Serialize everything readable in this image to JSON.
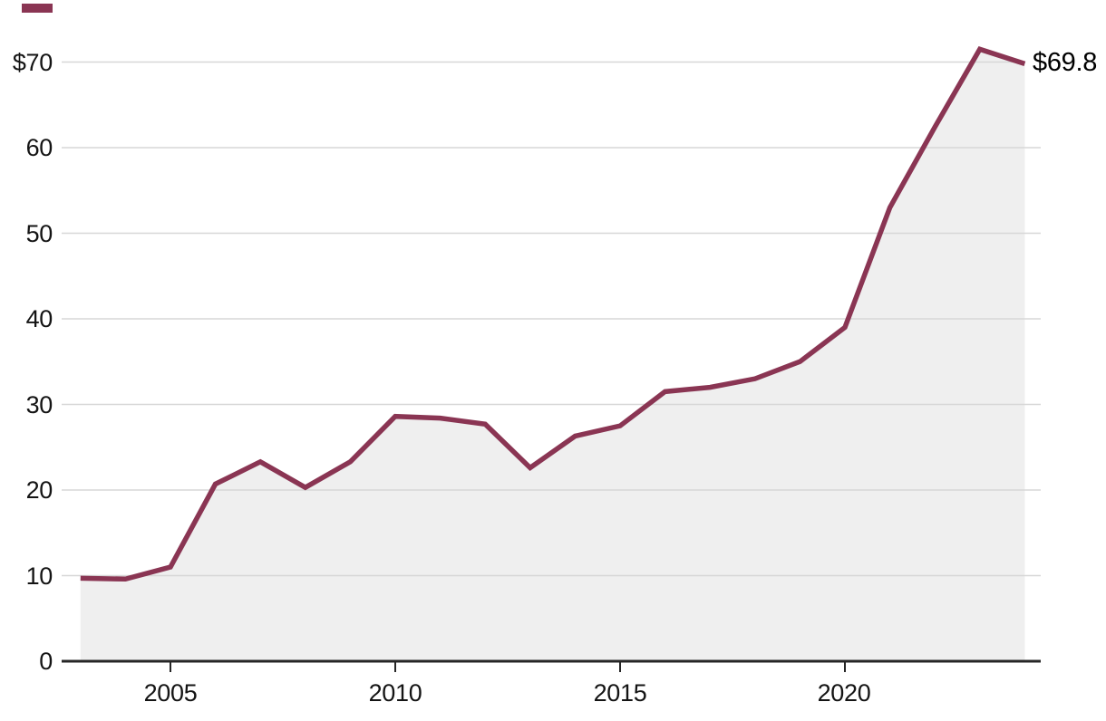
{
  "chart_data": {
    "type": "area",
    "title": "",
    "x": [
      2003,
      2004,
      2005,
      2006,
      2007,
      2008,
      2009,
      2010,
      2011,
      2012,
      2013,
      2014,
      2015,
      2016,
      2017,
      2018,
      2019,
      2020,
      2021,
      2022,
      2023,
      2024
    ],
    "values": [
      9.7,
      9.6,
      11.0,
      20.7,
      23.3,
      20.3,
      23.3,
      28.6,
      28.4,
      27.7,
      22.6,
      26.3,
      27.5,
      31.5,
      32.0,
      33.0,
      35.0,
      39.0,
      53.0,
      62.4,
      71.5,
      69.8
    ],
    "ylim": [
      0,
      70
    ],
    "grid": "horizontal",
    "legend": "none",
    "y_tick_values": [
      70,
      60,
      50,
      40,
      30,
      20,
      10,
      0
    ],
    "y_tick_labels": [
      "$70",
      "60",
      "50",
      "40",
      "30",
      "20",
      "10",
      "0"
    ],
    "x_tick_values": [
      2005,
      2010,
      2015,
      2020
    ],
    "x_tick_labels": [
      "2005",
      "2010",
      "2015",
      "2020"
    ],
    "end_label": "$69.8"
  },
  "colors": {
    "line": "#8a3553",
    "area_fill": "#efefef",
    "gridline": "#d7d7d7",
    "axis": "#262626",
    "brand_tab": "#8a3553"
  }
}
